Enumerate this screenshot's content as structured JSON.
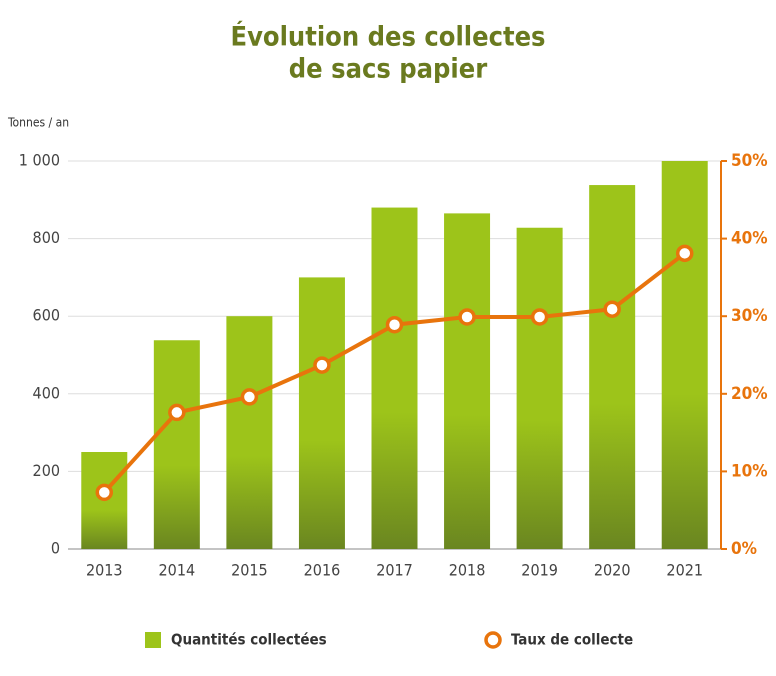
{
  "chart_data": {
    "type": "bar-line",
    "title": [
      "Évolution des collectes",
      "de sacs papier"
    ],
    "y_label": "Tonnes / an",
    "categories": [
      "2013",
      "2014",
      "2015",
      "2016",
      "2017",
      "2018",
      "2019",
      "2020",
      "2021"
    ],
    "series": [
      {
        "name": "Quantités collectées",
        "type": "bar",
        "color": "#9dc41a",
        "values": [
          250,
          538,
          600,
          700,
          880,
          865,
          828,
          938,
          1000
        ]
      },
      {
        "name": "Taux de collecte",
        "type": "line",
        "axis": "y2",
        "color": "#e8740c",
        "values": [
          7.3,
          17.6,
          19.6,
          23.7,
          28.9,
          29.9,
          29.9,
          30.9,
          38.1
        ]
      }
    ],
    "ylim": [
      0,
      1000
    ],
    "yticks": [
      0,
      200,
      400,
      600,
      800,
      {
        "value": 1000,
        "label": "1 000"
      }
    ],
    "y2lim": [
      0,
      50
    ],
    "y2ticks": [
      {
        "value": 0,
        "label": "0%"
      },
      {
        "value": 10,
        "label": "10%"
      },
      {
        "value": 20,
        "label": "20%"
      },
      {
        "value": 30,
        "label": "30%"
      },
      {
        "value": 40,
        "label": "40%"
      },
      {
        "value": 50,
        "label": "50%"
      }
    ],
    "grid": true
  }
}
